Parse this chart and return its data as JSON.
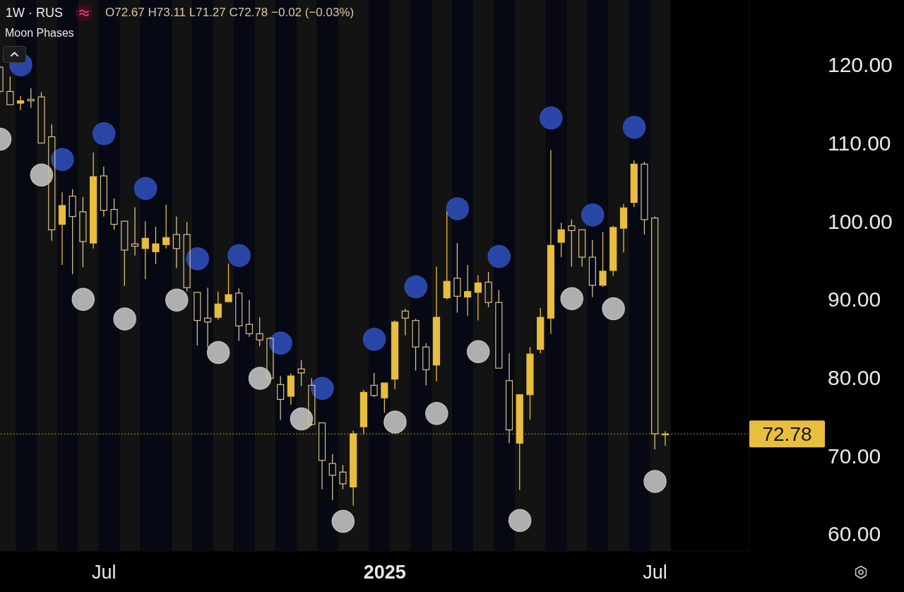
{
  "chart_data": {
    "type": "candlestick",
    "title": "1W · RUS",
    "annotations": [
      "O72.67 H73.11 L71.27 C72.78 −0.02 (−0.03%)",
      "Moon Phases"
    ],
    "x": [
      "2024-04-22",
      "2024-04-29",
      "2024-05-06",
      "2024-05-13",
      "2024-05-20",
      "2024-05-27",
      "2024-06-03",
      "2024-06-10",
      "2024-06-17",
      "2024-06-24",
      "2024-07-01",
      "2024-07-08",
      "2024-07-15",
      "2024-07-22",
      "2024-07-29",
      "2024-08-05",
      "2024-08-12",
      "2024-08-19",
      "2024-08-26",
      "2024-09-02",
      "2024-09-09",
      "2024-09-16",
      "2024-09-23",
      "2024-09-30",
      "2024-10-07",
      "2024-10-14",
      "2024-10-21",
      "2024-10-28",
      "2024-11-04",
      "2024-11-11",
      "2024-11-18",
      "2024-11-25",
      "2024-12-02",
      "2024-12-09",
      "2024-12-16",
      "2024-12-23",
      "2024-12-30",
      "2025-01-06",
      "2025-01-13",
      "2025-01-20",
      "2025-01-27",
      "2025-02-03",
      "2025-02-10",
      "2025-02-17",
      "2025-02-24",
      "2025-03-03",
      "2025-03-10",
      "2025-03-17",
      "2025-03-24",
      "2025-03-31",
      "2025-04-07",
      "2025-04-14",
      "2025-04-21",
      "2025-04-28",
      "2025-05-05",
      "2025-05-12",
      "2025-05-19",
      "2025-05-26",
      "2025-06-02",
      "2025-06-09",
      "2025-06-16",
      "2025-06-23",
      "2025-06-30",
      "2025-07-07",
      "2025-07-14"
    ],
    "ohlc": [
      [
        119.7,
        119.9,
        116.3,
        116.6
      ],
      [
        116.6,
        118.5,
        114.9,
        114.9
      ],
      [
        115.1,
        116.0,
        114.2,
        115.4
      ],
      [
        115.6,
        117.0,
        114.5,
        115.4
      ],
      [
        115.9,
        116.5,
        110.0,
        110.0
      ],
      [
        110.8,
        112.4,
        97.5,
        98.9
      ],
      [
        99.6,
        103.7,
        94.4,
        102.0
      ],
      [
        103.2,
        104.1,
        93.2,
        100.6
      ],
      [
        101.2,
        103.1,
        94.1,
        97.4
      ],
      [
        97.2,
        108.8,
        96.5,
        105.7
      ],
      [
        105.8,
        107.0,
        100.6,
        101.4
      ],
      [
        101.5,
        102.9,
        98.9,
        99.6
      ],
      [
        100.0,
        100.0,
        91.7,
        96.3
      ],
      [
        97.1,
        101.8,
        95.6,
        96.8
      ],
      [
        96.5,
        100.0,
        92.6,
        97.8
      ],
      [
        96.1,
        99.3,
        94.5,
        97.1
      ],
      [
        97.0,
        102.1,
        96.5,
        97.9
      ],
      [
        98.3,
        100.6,
        94.0,
        96.5
      ],
      [
        98.3,
        99.9,
        91.0,
        91.5
      ],
      [
        90.9,
        90.9,
        84.1,
        87.3
      ],
      [
        87.6,
        91.5,
        83.8,
        87.1
      ],
      [
        87.7,
        91.0,
        87.4,
        89.4
      ],
      [
        89.7,
        94.6,
        89.7,
        90.6
      ],
      [
        90.8,
        91.4,
        84.7,
        86.6
      ],
      [
        86.8,
        89.9,
        85.2,
        85.6
      ],
      [
        85.6,
        87.7,
        84.0,
        84.8
      ],
      [
        85.0,
        85.2,
        79.8,
        79.9
      ],
      [
        79.1,
        80.2,
        74.6,
        77.2
      ],
      [
        77.6,
        80.5,
        76.5,
        80.2
      ],
      [
        81.1,
        82.2,
        78.9,
        80.6
      ],
      [
        79.0,
        79.9,
        73.8,
        74.0
      ],
      [
        74.2,
        74.2,
        65.7,
        69.4
      ],
      [
        69.0,
        70.2,
        64.3,
        67.5
      ],
      [
        67.9,
        68.8,
        65.7,
        66.4
      ],
      [
        66.0,
        73.2,
        63.6,
        72.8
      ],
      [
        73.7,
        78.4,
        72.7,
        78.1
      ],
      [
        79.0,
        80.6,
        77.5,
        77.7
      ],
      [
        77.4,
        79.3,
        75.5,
        79.3
      ],
      [
        79.8,
        87.3,
        78.5,
        87.1
      ],
      [
        88.5,
        88.8,
        85.4,
        87.6
      ],
      [
        87.3,
        87.5,
        80.9,
        83.9
      ],
      [
        83.9,
        84.4,
        79.0,
        81.0
      ],
      [
        81.6,
        94.2,
        79.5,
        87.7
      ],
      [
        90.2,
        101.2,
        90.0,
        92.3
      ],
      [
        92.7,
        97.2,
        88.3,
        90.4
      ],
      [
        90.3,
        94.4,
        87.9,
        91.0
      ],
      [
        90.9,
        93.1,
        87.3,
        92.1
      ],
      [
        92.2,
        93.5,
        89.0,
        89.6
      ],
      [
        89.6,
        91.2,
        81.2,
        81.2
      ],
      [
        79.6,
        83.1,
        71.6,
        73.3
      ],
      [
        71.6,
        77.8,
        65.6,
        77.8
      ],
      [
        77.8,
        83.9,
        74.6,
        83.0
      ],
      [
        83.6,
        88.9,
        83.1,
        87.7
      ],
      [
        87.6,
        109.1,
        85.6,
        96.9
      ],
      [
        97.3,
        99.8,
        95.4,
        98.9
      ],
      [
        99.4,
        100.2,
        94.2,
        98.8
      ],
      [
        98.9,
        98.9,
        94.2,
        95.4
      ],
      [
        95.4,
        97.6,
        90.3,
        91.8
      ],
      [
        91.8,
        98.6,
        91.6,
        93.6
      ],
      [
        93.7,
        99.4,
        93.0,
        99.2
      ],
      [
        99.1,
        102.2,
        96.0,
        101.7
      ],
      [
        102.4,
        107.8,
        101.8,
        107.3
      ],
      [
        107.3,
        107.6,
        98.3,
        100.2
      ],
      [
        100.4,
        100.6,
        70.8,
        72.8
      ],
      [
        72.67,
        73.11,
        71.27,
        72.78
      ]
    ],
    "colors": [
      "#d8c08c",
      "#d8c08c",
      "#e9bd3d",
      "#d8c08c",
      "#d8c08c",
      "#d8c08c",
      "#e9bd3d",
      "#d8c08c",
      "#d8c08c",
      "#e9bd3d",
      "#d8c08c",
      "#d8c08c",
      "#d8c08c",
      "#d8c08c",
      "#e9bd3d",
      "#e9bd3d",
      "#e9bd3d",
      "#d8c08c",
      "#d8c08c",
      "#d8c08c",
      "#d8c08c",
      "#e9bd3d",
      "#e9bd3d",
      "#d8c08c",
      "#d8c08c",
      "#d8c08c",
      "#d8c08c",
      "#d8c08c",
      "#e9bd3d",
      "#d8c08c",
      "#d8c08c",
      "#d8c08c",
      "#d8c08c",
      "#d8c08c",
      "#e9bd3d",
      "#e9bd3d",
      "#d8c08c",
      "#e9bd3d",
      "#e9bd3d",
      "#d8c08c",
      "#d8c08c",
      "#d8c08c",
      "#e9bd3d",
      "#e9bd3d",
      "#d8c08c",
      "#e9bd3d",
      "#e9bd3d",
      "#d8c08c",
      "#d8c08c",
      "#d8c08c",
      "#e9bd3d",
      "#e9bd3d",
      "#e9bd3d",
      "#e9bd3d",
      "#e9bd3d",
      "#d8c08c",
      "#d8c08c",
      "#d8c08c",
      "#e9bd3d",
      "#e9bd3d",
      "#e9bd3d",
      "#e9bd3d",
      "#d8c08c",
      "#d8c08c",
      "#e9bd3d"
    ],
    "series": [
      {
        "type": "scatter",
        "color": "#2c4bb3",
        "x": [
          "2024-05-06",
          "2024-06-03",
          "2024-07-01",
          "2024-07-29",
          "2024-09-02",
          "2024-09-30",
          "2024-10-28",
          "2024-11-25",
          "2024-12-30",
          "2025-01-27",
          "2025-02-24",
          "2025-03-24",
          "2025-04-28",
          "2025-05-26",
          "2025-06-23"
        ],
        "values": [
          120.0,
          107.9,
          111.2,
          104.2,
          95.2,
          95.6,
          84.4,
          78.6,
          84.9,
          91.6,
          101.6,
          95.5,
          113.2,
          100.8,
          112.0
        ]
      },
      {
        "type": "scatter",
        "color": "#bdbdbd",
        "x": [
          "2024-04-22",
          "2024-05-20",
          "2024-06-17",
          "2024-07-15",
          "2024-08-19",
          "2024-09-16",
          "2024-10-14",
          "2024-11-11",
          "2024-12-09",
          "2025-01-13",
          "2025-02-10",
          "2025-03-10",
          "2025-04-07",
          "2025-05-12",
          "2025-06-09",
          "2025-07-07"
        ],
        "values": [
          110.5,
          105.9,
          90.0,
          87.5,
          89.9,
          83.2,
          79.9,
          74.7,
          61.6,
          74.3,
          75.4,
          83.3,
          61.7,
          90.1,
          88.8,
          66.7
        ]
      }
    ],
    "marker": "circle",
    "xlim": [
      "2024-04-22",
      "2025-09-08"
    ],
    "xticks": [
      {
        "value": "2024-07-01",
        "label": "Jul"
      },
      {
        "value": "2025-01-06",
        "label": "2025"
      },
      {
        "value": "2025-07-07",
        "label": "Jul"
      }
    ],
    "ylim": [
      57.8,
      128.3
    ],
    "yticks": [
      {
        "value": 60,
        "label": "60.00"
      },
      {
        "value": 70,
        "label": "70.00"
      },
      {
        "value": 80,
        "label": "80.00"
      },
      {
        "value": 90,
        "label": "90.00"
      },
      {
        "value": 100,
        "label": "100.00"
      },
      {
        "value": 110,
        "label": "110.00"
      },
      {
        "value": 120,
        "label": "120.00"
      }
    ],
    "ref_lines": [
      {
        "axis": "y",
        "value": 72.78,
        "label": "72.78",
        "color": "#e9bd3d",
        "line_style": "dotted"
      }
    ],
    "bands": [
      {
        "axis": "x",
        "from": "2024-04-22",
        "to": "2024-05-02T12:00",
        "color": "#131313"
      },
      {
        "axis": "x",
        "from": "2024-05-02T12:00",
        "to": "2024-05-16T12:00",
        "color": "#060913"
      },
      {
        "axis": "x",
        "from": "2024-05-16T12:00",
        "to": "2024-05-30T12:00",
        "color": "#131313"
      },
      {
        "axis": "x",
        "from": "2024-05-30T12:00",
        "to": "2024-06-13T12:00",
        "color": "#060913"
      },
      {
        "axis": "x",
        "from": "2024-06-13T12:00",
        "to": "2024-06-27T12:00",
        "color": "#131313"
      },
      {
        "axis": "x",
        "from": "2024-06-27T12:00",
        "to": "2024-07-11T12:00",
        "color": "#060913"
      },
      {
        "axis": "x",
        "from": "2024-07-11T12:00",
        "to": "2024-07-25T12:00",
        "color": "#131313"
      },
      {
        "axis": "x",
        "from": "2024-07-25T12:00",
        "to": "2024-08-15T12:00",
        "color": "#060913"
      },
      {
        "axis": "x",
        "from": "2024-08-15T12:00",
        "to": "2024-08-29T12:00",
        "color": "#131313"
      },
      {
        "axis": "x",
        "from": "2024-08-29T12:00",
        "to": "2024-09-12T12:00",
        "color": "#060913"
      },
      {
        "axis": "x",
        "from": "2024-09-12T12:00",
        "to": "2024-09-26T12:00",
        "color": "#131313"
      },
      {
        "axis": "x",
        "from": "2024-09-26T12:00",
        "to": "2024-10-10T12:00",
        "color": "#060913"
      },
      {
        "axis": "x",
        "from": "2024-10-10T12:00",
        "to": "2024-10-24T12:00",
        "color": "#131313"
      },
      {
        "axis": "x",
        "from": "2024-10-24T12:00",
        "to": "2024-11-07T12:00",
        "color": "#060913"
      },
      {
        "axis": "x",
        "from": "2024-11-07T12:00",
        "to": "2024-11-21T12:00",
        "color": "#131313"
      },
      {
        "axis": "x",
        "from": "2024-11-21T12:00",
        "to": "2024-12-05T12:00",
        "color": "#060913"
      },
      {
        "axis": "x",
        "from": "2024-12-05T12:00",
        "to": "2024-12-26T12:00",
        "color": "#131313"
      },
      {
        "axis": "x",
        "from": "2024-12-26T12:00",
        "to": "2025-01-09T12:00",
        "color": "#060913"
      },
      {
        "axis": "x",
        "from": "2025-01-09T12:00",
        "to": "2025-01-23T12:00",
        "color": "#131313"
      },
      {
        "axis": "x",
        "from": "2025-01-23T12:00",
        "to": "2025-02-06T12:00",
        "color": "#060913"
      },
      {
        "axis": "x",
        "from": "2025-02-06T12:00",
        "to": "2025-02-20T12:00",
        "color": "#131313"
      },
      {
        "axis": "x",
        "from": "2025-02-20T12:00",
        "to": "2025-03-06T12:00",
        "color": "#060913"
      },
      {
        "axis": "x",
        "from": "2025-03-06T12:00",
        "to": "2025-03-20T12:00",
        "color": "#131313"
      },
      {
        "axis": "x",
        "from": "2025-03-20T12:00",
        "to": "2025-04-03T12:00",
        "color": "#060913"
      },
      {
        "axis": "x",
        "from": "2025-04-03T12:00",
        "to": "2025-04-24T12:00",
        "color": "#131313"
      },
      {
        "axis": "x",
        "from": "2025-04-24T12:00",
        "to": "2025-05-08T12:00",
        "color": "#060913"
      },
      {
        "axis": "x",
        "from": "2025-05-08T12:00",
        "to": "2025-05-22T12:00",
        "color": "#131313"
      },
      {
        "axis": "x",
        "from": "2025-05-22T12:00",
        "to": "2025-06-05T12:00",
        "color": "#060913"
      },
      {
        "axis": "x",
        "from": "2025-06-05T12:00",
        "to": "2025-06-19T12:00",
        "color": "#131313"
      },
      {
        "axis": "x",
        "from": "2025-06-19T12:00",
        "to": "2025-07-03T12:00",
        "color": "#060913"
      },
      {
        "axis": "x",
        "from": "2025-07-03T12:00",
        "to": "2025-07-17T12:00",
        "color": "#131313"
      }
    ]
  }
}
